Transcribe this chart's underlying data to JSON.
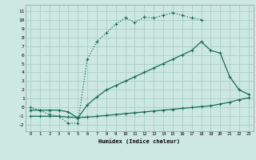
{
  "xlabel": "Humidex (Indice chaleur)",
  "bg_color": "#cce8e0",
  "grid_color": "#aacfc8",
  "line_color": "#1a6b5a",
  "xlim": [
    -0.5,
    23.5
  ],
  "ylim": [
    -2.7,
    11.7
  ],
  "xticks": [
    0,
    1,
    2,
    3,
    4,
    5,
    6,
    7,
    8,
    9,
    10,
    11,
    12,
    13,
    14,
    15,
    16,
    17,
    18,
    19,
    20,
    21,
    22,
    23
  ],
  "yticks": [
    -2,
    -1,
    0,
    1,
    2,
    3,
    4,
    5,
    6,
    7,
    8,
    9,
    10,
    11
  ],
  "curve1_x": [
    0,
    1,
    2,
    3,
    4,
    5,
    6,
    7,
    8,
    9,
    10,
    11,
    12,
    13,
    14,
    15,
    16,
    17,
    18
  ],
  "curve1_y": [
    0.0,
    -0.3,
    -0.8,
    -1.0,
    -1.8,
    -1.8,
    5.5,
    7.5,
    8.5,
    9.5,
    10.2,
    9.7,
    10.3,
    10.2,
    10.5,
    10.8,
    10.5,
    10.2,
    10.0
  ],
  "curve2_x": [
    0,
    1,
    2,
    3,
    4,
    5,
    6,
    7,
    8,
    9,
    10,
    11,
    12,
    13,
    14,
    15,
    16,
    17,
    18,
    19,
    20,
    21,
    22,
    23
  ],
  "curve2_y": [
    -0.3,
    -0.3,
    -0.3,
    -0.3,
    -0.5,
    -1.2,
    0.3,
    1.2,
    2.0,
    2.5,
    3.0,
    3.5,
    4.0,
    4.5,
    5.0,
    5.5,
    6.0,
    6.5,
    7.5,
    6.5,
    6.2,
    3.5,
    2.0,
    1.5
  ],
  "curve3_x": [
    0,
    1,
    2,
    3,
    4,
    5,
    6,
    7,
    8,
    9,
    10,
    11,
    12,
    13,
    14,
    15,
    16,
    17,
    18,
    19,
    20,
    21,
    22,
    23
  ],
  "curve3_y": [
    -1.0,
    -1.0,
    -1.0,
    -1.0,
    -1.1,
    -1.15,
    -1.1,
    -1.0,
    -0.9,
    -0.8,
    -0.7,
    -0.6,
    -0.5,
    -0.4,
    -0.3,
    -0.2,
    -0.1,
    0.0,
    0.1,
    0.2,
    0.4,
    0.6,
    0.9,
    1.1
  ]
}
